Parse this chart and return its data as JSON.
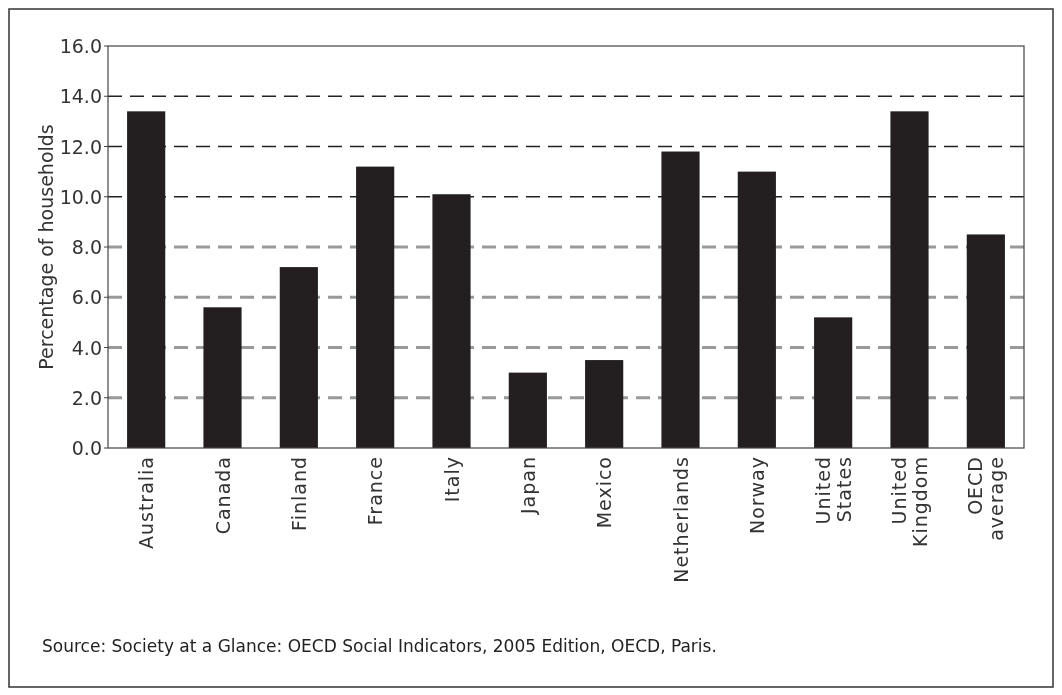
{
  "chart_data": {
    "type": "bar",
    "ylabel": "Percentage of households",
    "categories": [
      "Australia",
      "Canada",
      "Finland",
      "France",
      "Italy",
      "Japan",
      "Mexico",
      "Netherlands",
      "Norway",
      "United States",
      "United Kingdom",
      "OECD average"
    ],
    "values": [
      13.4,
      5.6,
      7.2,
      11.2,
      10.1,
      3.0,
      3.5,
      11.8,
      11.0,
      5.2,
      13.4,
      8.5
    ],
    "color": "#231f20",
    "ylim": [
      0,
      16
    ],
    "yticks": [
      {
        "value": 0,
        "label": "0.0"
      },
      {
        "value": 2,
        "label": "2.0"
      },
      {
        "value": 4,
        "label": "4.0"
      },
      {
        "value": 6,
        "label": "6.0"
      },
      {
        "value": 8,
        "label": "8.0"
      },
      {
        "value": 10,
        "label": "10.0"
      },
      {
        "value": 12,
        "label": "12.0"
      },
      {
        "value": 14,
        "label": "14.0"
      },
      {
        "value": 16,
        "label": "16.0"
      }
    ],
    "grid": "y",
    "annotations": [
      "Source: Society at a Glance: OECD Social Indicators, 2005 Edition, OECD, Paris."
    ]
  }
}
